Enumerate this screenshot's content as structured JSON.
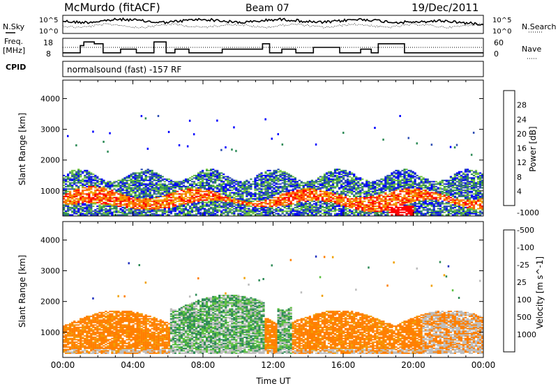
{
  "header": {
    "station": "McMurdo (fitACF)",
    "beam": "Beam 07",
    "date": "19/Dec/2011"
  },
  "left_labels": {
    "nsky": "N.Sky",
    "freq_line1": "Freq.",
    "freq_line2": "[MHz]",
    "cpid": "CPID"
  },
  "right_labels": {
    "nsearch": "N.Search",
    "nave": "Nave"
  },
  "cpid_text": "normalsound (fast) -157 RF",
  "noise_panel": {
    "left_ticks": [
      "10^5",
      "10^0"
    ],
    "right_ticks": [
      "10^5",
      "10^0"
    ]
  },
  "freq_panel": {
    "left_ticks": [
      "18",
      "8"
    ],
    "right_ticks": [
      "60",
      "0"
    ],
    "freq_levels": [
      {
        "t": 0.0,
        "v": 10
      },
      {
        "t": 1.0,
        "v": 14
      },
      {
        "t": 1.2,
        "v": 16
      },
      {
        "t": 1.8,
        "v": 15
      },
      {
        "t": 2.3,
        "v": 10
      },
      {
        "t": 3.3,
        "v": 12
      },
      {
        "t": 4.2,
        "v": 10
      },
      {
        "t": 5.2,
        "v": 16
      },
      {
        "t": 5.9,
        "v": 10
      },
      {
        "t": 6.4,
        "v": 12
      },
      {
        "t": 7.2,
        "v": 10
      },
      {
        "t": 9.1,
        "v": 12
      },
      {
        "t": 11.4,
        "v": 15
      },
      {
        "t": 11.8,
        "v": 10
      },
      {
        "t": 12.5,
        "v": 12
      },
      {
        "t": 13.3,
        "v": 10
      },
      {
        "t": 14.3,
        "v": 13
      },
      {
        "t": 15.8,
        "v": 10
      },
      {
        "t": 17.0,
        "v": 12
      },
      {
        "t": 17.6,
        "v": 10
      },
      {
        "t": 18.0,
        "v": 15
      },
      {
        "t": 19.5,
        "v": 10
      },
      {
        "t": 24.0,
        "v": 10
      }
    ]
  },
  "chart_data": [
    {
      "type": "heatmap",
      "title": "Power",
      "xlabel": "",
      "ylabel": "Slant Range [km]",
      "xlim": [
        0,
        24
      ],
      "ylim": [
        180,
        4600
      ],
      "yticks": [
        1000,
        2000,
        3000,
        4000
      ],
      "colorbar": {
        "label": "Power [dB]",
        "ticks": [
          "4",
          "8",
          "12",
          "16",
          "20",
          "24",
          "28"
        ],
        "colors": [
          "#0000ff",
          "#2f4fb4",
          "#2e8b57",
          "#6fc242",
          "#d4d400",
          "#f0a000",
          "#ff6600",
          "#ff0000"
        ]
      }
    },
    {
      "type": "heatmap",
      "title": "Velocity",
      "xlabel": "Time UT",
      "ylabel": "Slant Range [km]",
      "xlim": [
        0,
        24
      ],
      "ylim": [
        180,
        4600
      ],
      "xticks": [
        "00:00",
        "04:00",
        "08:00",
        "12:00",
        "16:00",
        "20:00",
        "00:00"
      ],
      "yticks": [
        1000,
        2000,
        3000,
        4000
      ],
      "colorbar": {
        "label": "Velocity [m s^-1]",
        "ticks": [
          "1000",
          "500",
          "100",
          "25",
          "-25",
          "-100",
          "-500",
          "-1000"
        ],
        "colors": [
          "#2030c0",
          "#2e8b57",
          "#5cc040",
          "#bdbdbd",
          "#f0a000",
          "#ff7f00",
          "#ff0000"
        ]
      }
    }
  ]
}
